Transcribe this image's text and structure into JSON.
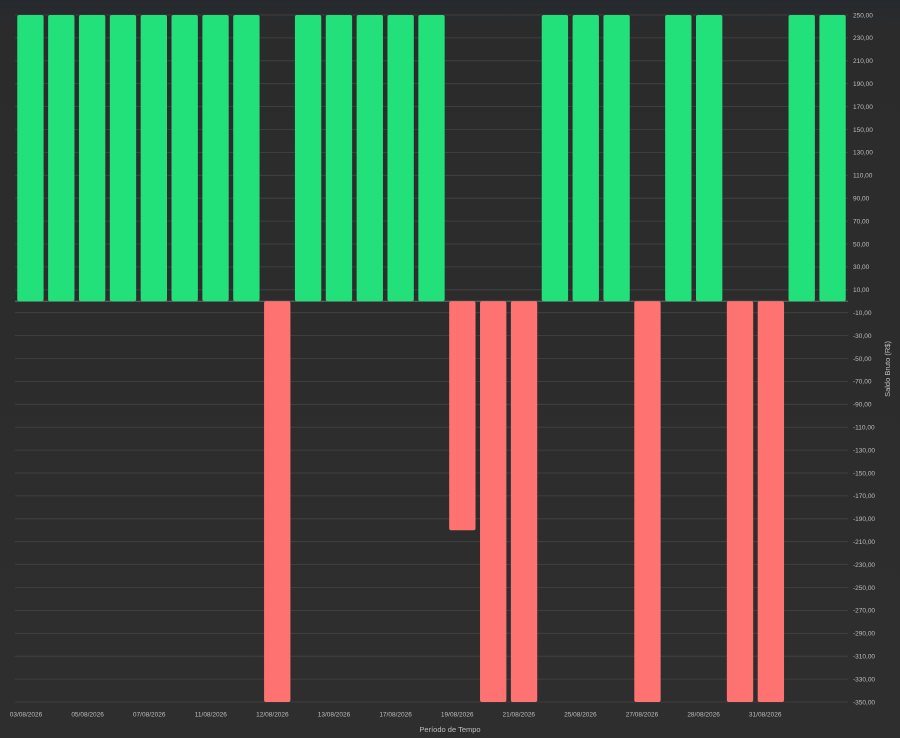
{
  "chart_data": {
    "type": "bar",
    "xlabel": "Período de Tempo",
    "ylabel": "Saldo Bruto (R$)",
    "ylim": [
      -350,
      250
    ],
    "y_ticks": [
      250,
      230,
      210,
      190,
      170,
      150,
      130,
      110,
      90,
      70,
      50,
      30,
      10,
      -10,
      -30,
      -50,
      -70,
      -90,
      -110,
      -130,
      -150,
      -170,
      -190,
      -210,
      -230,
      -250,
      -270,
      -290,
      -310,
      -330,
      -350
    ],
    "y_tick_labels": [
      "250,00",
      "230,00",
      "210,00",
      "190,00",
      "170,00",
      "150,00",
      "130,00",
      "110,00",
      "90,00",
      "70,00",
      "50,00",
      "30,00",
      "10,00",
      "-10,00",
      "-30,00",
      "-50,00",
      "-70,00",
      "-90,00",
      "-110,00",
      "-130,00",
      "-150,00",
      "-170,00",
      "-190,00",
      "-210,00",
      "-230,00",
      "-250,00",
      "-270,00",
      "-290,00",
      "-310,00",
      "-330,00",
      "-350,00"
    ],
    "x_tick_labels": [
      "03/08/2026",
      "05/08/2026",
      "07/08/2026",
      "11/08/2026",
      "12/08/2026",
      "13/08/2026",
      "17/08/2026",
      "19/08/2026",
      "21/08/2026",
      "25/08/2026",
      "27/08/2026",
      "28/08/2026",
      "31/08/2026"
    ],
    "values": [
      250,
      250,
      250,
      250,
      250,
      250,
      250,
      250,
      -350,
      250,
      250,
      250,
      250,
      250,
      -200,
      -350,
      -350,
      250,
      250,
      250,
      -350,
      250,
      250,
      -350,
      -350,
      250,
      250
    ],
    "colors": {
      "positive": "#22e07a",
      "negative": "#ff7272",
      "grid": "#444444",
      "zero_line": "#6a6a6a"
    },
    "grid": true,
    "legend": "none"
  }
}
